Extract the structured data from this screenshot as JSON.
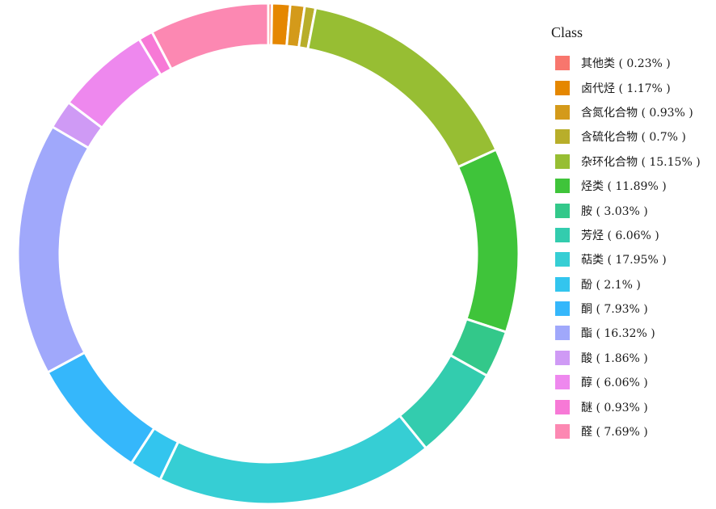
{
  "chart_data": {
    "type": "pie",
    "variant": "donut",
    "legend_title": "Class",
    "legend_position": "right",
    "slices": [
      {
        "label": "其他类",
        "percent": 0.23,
        "legend_text": "其他类 ( 0.23% )",
        "color": "#F8766D"
      },
      {
        "label": "卤代烃",
        "percent": 1.17,
        "legend_text": "卤代烃 ( 1.17% )",
        "color": "#E58700"
      },
      {
        "label": "含氮化合物",
        "percent": 0.93,
        "legend_text": "含氮化合物 ( 0.93% )",
        "color": "#D49A1A"
      },
      {
        "label": "含硫化合物",
        "percent": 0.7,
        "legend_text": "含硫化合物 ( 0.7% )",
        "color": "#B8AE2A"
      },
      {
        "label": "杂环化合物",
        "percent": 15.15,
        "legend_text": "杂环化合物 ( 15.15% )",
        "color": "#97BE33"
      },
      {
        "label": "烃类",
        "percent": 11.89,
        "legend_text": "烃类 ( 11.89% )",
        "color": "#3FC43A"
      },
      {
        "label": "胺",
        "percent": 3.03,
        "legend_text": "胺 ( 3.03% )",
        "color": "#33C88A"
      },
      {
        "label": "芳烃",
        "percent": 6.06,
        "legend_text": "芳烃 ( 6.06% )",
        "color": "#33CCAE"
      },
      {
        "label": "萜类",
        "percent": 17.95,
        "legend_text": "萜类 ( 17.95% )",
        "color": "#36CED4"
      },
      {
        "label": "酚",
        "percent": 2.1,
        "legend_text": "酚 ( 2.1% )",
        "color": "#33C5EE"
      },
      {
        "label": "酮",
        "percent": 7.93,
        "legend_text": "酮 ( 7.93% )",
        "color": "#35B7FB"
      },
      {
        "label": "酯",
        "percent": 16.32,
        "legend_text": "酯 ( 16.32% )",
        "color": "#A0A8FB"
      },
      {
        "label": "酸",
        "percent": 1.86,
        "legend_text": "酸 ( 1.86% )",
        "color": "#CF9AF5"
      },
      {
        "label": "醇",
        "percent": 6.06,
        "legend_text": "醇 ( 6.06% )",
        "color": "#EE88EE"
      },
      {
        "label": "醚",
        "percent": 0.93,
        "legend_text": "醚 ( 0.93% )",
        "color": "#F779D6"
      },
      {
        "label": "醛",
        "percent": 7.69,
        "legend_text": "醛 ( 7.69% )",
        "color": "#FC88B2"
      }
    ]
  }
}
